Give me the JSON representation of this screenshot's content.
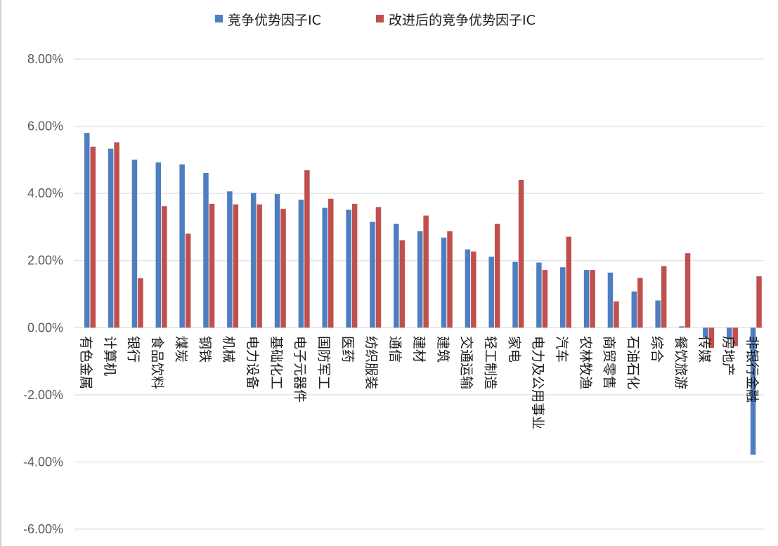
{
  "chart_data": {
    "type": "bar",
    "title": "",
    "xlabel": "",
    "ylabel": "",
    "ylim": [
      -0.06,
      0.08
    ],
    "y_ticks": [
      -0.06,
      -0.04,
      -0.02,
      0.0,
      0.02,
      0.04,
      0.06,
      0.08
    ],
    "y_tick_labels": [
      "-6.00%",
      "-4.00%",
      "-2.00%",
      "0.00%",
      "2.00%",
      "4.00%",
      "6.00%",
      "8.00%"
    ],
    "grid": true,
    "legend_position": "top-center",
    "categories": [
      "有色金属",
      "计算机",
      "银行",
      "食品饮料",
      "煤炭",
      "钢铁",
      "机械",
      "电力设备",
      "基础化工",
      "电子元器件",
      "国防军工",
      "医药",
      "纺织服装",
      "通信",
      "建材",
      "建筑",
      "交通运输",
      "轻工制造",
      "家电",
      "电力及公用事业",
      "汽车",
      "农林牧渔",
      "商贸零售",
      "石油石化",
      "综合",
      "餐饮旅游",
      "传媒",
      "房地产",
      "非银行金融"
    ],
    "series": [
      {
        "name": "竞争优势因子IC",
        "color": "#4f7ec0",
        "values": [
          0.058,
          0.0533,
          0.05,
          0.0492,
          0.0486,
          0.0461,
          0.0406,
          0.0401,
          0.0398,
          0.0381,
          0.0357,
          0.0351,
          0.0315,
          0.0309,
          0.0287,
          0.0268,
          0.0233,
          0.0211,
          0.0196,
          0.0194,
          0.018,
          0.0172,
          0.0164,
          0.0108,
          0.0081,
          0.0004,
          -0.003,
          -0.0035,
          -0.0378
        ]
      },
      {
        "name": "改进后的竞争优势因子IC",
        "color": "#c0504d",
        "values": [
          0.0539,
          0.0552,
          0.0147,
          0.0362,
          0.028,
          0.0369,
          0.0367,
          0.0367,
          0.0354,
          0.0469,
          0.0384,
          0.0369,
          0.0359,
          0.026,
          0.0334,
          0.0287,
          0.0227,
          0.0309,
          0.044,
          0.0172,
          0.0271,
          0.0172,
          0.0078,
          0.0148,
          0.0183,
          0.0222,
          -0.006,
          -0.0055,
          0.0153
        ]
      }
    ]
  }
}
